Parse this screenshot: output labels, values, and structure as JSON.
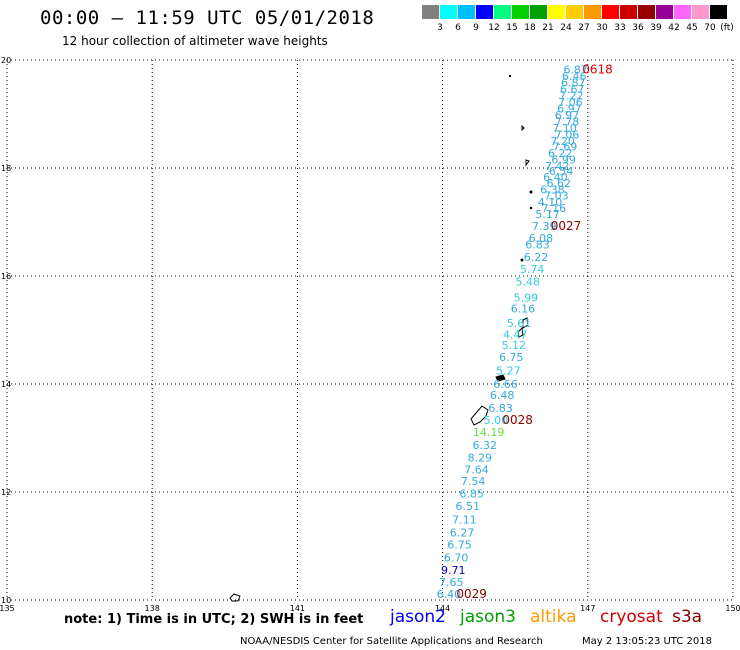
{
  "header": {
    "title": "00:00 — 11:59 UTC 05/01/2018",
    "subtitle": "12 hour collection of altimeter wave heights"
  },
  "legend": {
    "unit": "(ft)",
    "colors": [
      "#808080",
      "#00ffff",
      "#00bfff",
      "#0000ff",
      "#00ff80",
      "#00d000",
      "#00a000",
      "#ffff00",
      "#ffcc00",
      "#ff9900",
      "#ff0000",
      "#cc0000",
      "#990000",
      "#990099",
      "#ff66ff",
      "#ff99cc",
      "#000000"
    ],
    "labels": [
      "3",
      "6",
      "9",
      "12",
      "15",
      "18",
      "21",
      "24",
      "27",
      "30",
      "33",
      "36",
      "39",
      "42",
      "45",
      "70"
    ]
  },
  "axes": {
    "lon_ticks": [
      "135",
      "138",
      "141",
      "144",
      "147",
      "150"
    ],
    "lat_ticks": [
      "10",
      "12",
      "14",
      "16",
      "18",
      "20"
    ]
  },
  "wave_heights": [
    {
      "lat": 19.82,
      "lon": 146.75,
      "value": "6.87",
      "color": "#33aadd"
    },
    {
      "lat": 19.7,
      "lon": 146.72,
      "value": "6.46",
      "color": "#33aadd"
    },
    {
      "lat": 19.58,
      "lon": 146.7,
      "value": "6.87",
      "color": "#33aadd"
    },
    {
      "lat": 19.46,
      "lon": 146.68,
      "value": "6.67",
      "color": "#33aadd"
    },
    {
      "lat": 19.34,
      "lon": 146.66,
      "value": "7.22",
      "color": "#33aadd"
    },
    {
      "lat": 19.22,
      "lon": 146.64,
      "value": "7.06",
      "color": "#33aadd"
    },
    {
      "lat": 19.1,
      "lon": 146.62,
      "value": "6.97",
      "color": "#33aadd"
    },
    {
      "lat": 18.98,
      "lon": 146.57,
      "value": "6.97",
      "color": "#33aadd"
    },
    {
      "lat": 18.86,
      "lon": 146.57,
      "value": "7.78",
      "color": "#33aadd"
    },
    {
      "lat": 18.74,
      "lon": 146.52,
      "value": "7.10",
      "color": "#33aadd"
    },
    {
      "lat": 18.62,
      "lon": 146.57,
      "value": "7.06",
      "color": "#33aadd"
    },
    {
      "lat": 18.5,
      "lon": 146.48,
      "value": "7.20",
      "color": "#33aadd"
    },
    {
      "lat": 18.4,
      "lon": 146.53,
      "value": "7.69",
      "color": "#33aadd"
    },
    {
      "lat": 18.28,
      "lon": 146.43,
      "value": "6.22",
      "color": "#33aadd"
    },
    {
      "lat": 18.16,
      "lon": 146.5,
      "value": "6.99",
      "color": "#33aadd"
    },
    {
      "lat": 18.04,
      "lon": 146.37,
      "value": "7.42",
      "color": "#33aadd"
    },
    {
      "lat": 17.94,
      "lon": 146.45,
      "value": "6.54",
      "color": "#33aadd"
    },
    {
      "lat": 17.83,
      "lon": 146.33,
      "value": "6.40",
      "color": "#33aadd"
    },
    {
      "lat": 17.72,
      "lon": 146.4,
      "value": "6.62",
      "color": "#33aadd"
    },
    {
      "lat": 17.6,
      "lon": 146.27,
      "value": "6.38",
      "color": "#33aadd"
    },
    {
      "lat": 17.49,
      "lon": 146.35,
      "value": "7.03",
      "color": "#33aadd"
    },
    {
      "lat": 17.37,
      "lon": 146.22,
      "value": "4.10",
      "color": "#33aadd"
    },
    {
      "lat": 17.26,
      "lon": 146.3,
      "value": "7.16",
      "color": "#33aadd"
    },
    {
      "lat": 17.15,
      "lon": 146.17,
      "value": "5.17",
      "color": "#33aadd"
    },
    {
      "lat": 16.93,
      "lon": 146.1,
      "value": "7.39",
      "color": "#33aadd"
    },
    {
      "lat": 16.7,
      "lon": 146.03,
      "value": "6.08",
      "color": "#33aadd"
    },
    {
      "lat": 16.58,
      "lon": 145.96,
      "value": "6.83",
      "color": "#33aadd"
    },
    {
      "lat": 16.35,
      "lon": 145.93,
      "value": "6.22",
      "color": "#33aadd"
    },
    {
      "lat": 16.13,
      "lon": 145.85,
      "value": "5.74",
      "color": "#33ccdd"
    },
    {
      "lat": 15.9,
      "lon": 145.76,
      "value": "5.48",
      "color": "#33ccdd"
    },
    {
      "lat": 15.6,
      "lon": 145.72,
      "value": "5.99",
      "color": "#33ccdd"
    },
    {
      "lat": 15.4,
      "lon": 145.66,
      "value": "6.16",
      "color": "#33aadd"
    },
    {
      "lat": 15.13,
      "lon": 145.58,
      "value": "5.61",
      "color": "#33ccdd"
    },
    {
      "lat": 14.92,
      "lon": 145.5,
      "value": "4.47",
      "color": "#33ccdd"
    },
    {
      "lat": 14.72,
      "lon": 145.47,
      "value": "5.12",
      "color": "#33ccdd"
    },
    {
      "lat": 14.5,
      "lon": 145.42,
      "value": "6.75",
      "color": "#33aadd"
    },
    {
      "lat": 14.25,
      "lon": 145.36,
      "value": "5.27",
      "color": "#33ccdd"
    },
    {
      "lat": 14.0,
      "lon": 145.3,
      "value": "6.66",
      "color": "#33aadd"
    },
    {
      "lat": 13.8,
      "lon": 145.23,
      "value": "6.48",
      "color": "#33aadd"
    },
    {
      "lat": 13.56,
      "lon": 145.2,
      "value": "6.83",
      "color": "#33aadd"
    },
    {
      "lat": 13.33,
      "lon": 145.1,
      "value": "5.00",
      "color": "#33ccdd"
    },
    {
      "lat": 13.11,
      "lon": 144.95,
      "value": "14.19",
      "color": "#66dd33"
    },
    {
      "lat": 12.87,
      "lon": 144.87,
      "value": "6.32",
      "color": "#33aadd"
    },
    {
      "lat": 12.64,
      "lon": 144.77,
      "value": "8.29",
      "color": "#33aadd"
    },
    {
      "lat": 12.42,
      "lon": 144.7,
      "value": "7.64",
      "color": "#33aadd"
    },
    {
      "lat": 12.2,
      "lon": 144.63,
      "value": "7.54",
      "color": "#33aadd"
    },
    {
      "lat": 11.97,
      "lon": 144.6,
      "value": "6.85",
      "color": "#33aadd"
    },
    {
      "lat": 11.74,
      "lon": 144.52,
      "value": "6.51",
      "color": "#33aadd"
    },
    {
      "lat": 11.49,
      "lon": 144.45,
      "value": "7.11",
      "color": "#33aadd"
    },
    {
      "lat": 11.25,
      "lon": 144.4,
      "value": "6.27",
      "color": "#33aadd"
    },
    {
      "lat": 11.03,
      "lon": 144.35,
      "value": "6.75",
      "color": "#33aadd"
    },
    {
      "lat": 10.79,
      "lon": 144.28,
      "value": "6.70",
      "color": "#33aadd"
    },
    {
      "lat": 10.56,
      "lon": 144.22,
      "value": "9.71",
      "color": "#0000cc"
    },
    {
      "lat": 10.33,
      "lon": 144.18,
      "value": "7.65",
      "color": "#33aadd"
    },
    {
      "lat": 10.11,
      "lon": 144.13,
      "value": "6.40",
      "color": "#33aadd"
    }
  ],
  "time_labels": [
    {
      "lat": 19.82,
      "lon": 147.2,
      "text": "0618",
      "color": "#dd0000"
    },
    {
      "lat": 16.93,
      "lon": 146.55,
      "text": "0027",
      "color": "#880000"
    },
    {
      "lat": 13.33,
      "lon": 145.55,
      "text": "0028",
      "color": "#880000"
    },
    {
      "lat": 10.11,
      "lon": 144.6,
      "text": "0029",
      "color": "#880000"
    }
  ],
  "footer": {
    "note": "note: 1) Time is in UTC; 2) SWH is in feet",
    "missions": [
      {
        "name": "jason2",
        "color": "#0000ff"
      },
      {
        "name": "jason3",
        "color": "#00a000"
      },
      {
        "name": "altika",
        "color": "#ff9900"
      },
      {
        "name": "cryosat",
        "color": "#cc0000"
      },
      {
        "name": "s3a",
        "color": "#880000"
      }
    ],
    "credit": "NOAA/NESDIS Center for Satellite Applications and Research",
    "date": "May  2 13:05:23 UTC 2018"
  }
}
